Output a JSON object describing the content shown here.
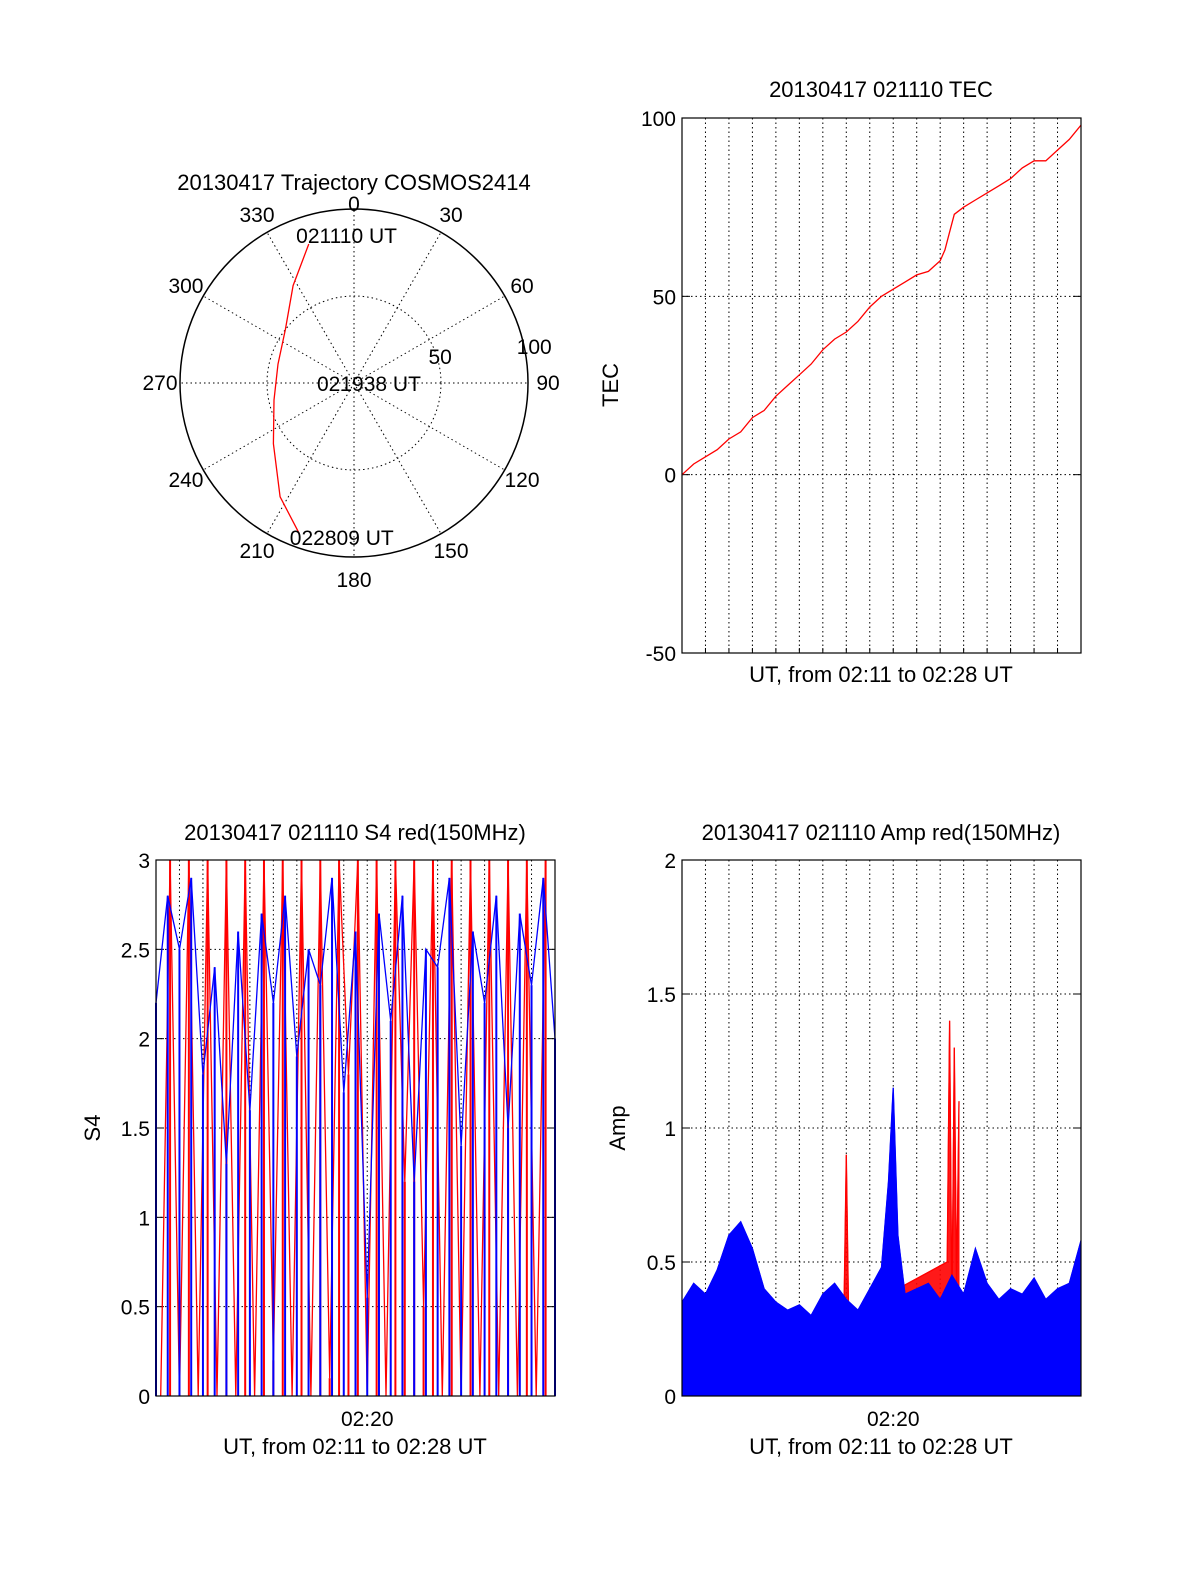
{
  "chart_data": [
    {
      "type": "polar",
      "title": "20130417 Trajectory COSMOS2414",
      "azimuth_labels": [
        "0",
        "30",
        "60",
        "90",
        "120",
        "150",
        "180",
        "210",
        "240",
        "270",
        "300",
        "330"
      ],
      "radial_labels": [
        "50",
        "100"
      ],
      "radial_range": [
        0,
        100
      ],
      "grid": true,
      "series": [
        {
          "color": "#ff0000",
          "points": [
            {
              "az": 342,
              "r": 84
            },
            {
              "az": 328,
              "r": 66
            },
            {
              "az": 308,
              "r": 50
            },
            {
              "az": 284,
              "r": 45
            },
            {
              "az": 258,
              "r": 47
            },
            {
              "az": 233,
              "r": 58
            },
            {
              "az": 213,
              "r": 78
            },
            {
              "az": 200,
              "r": 92
            }
          ]
        }
      ],
      "annotations": [
        {
          "text": "021110 UT",
          "az": 352,
          "r": 86
        },
        {
          "text": "021938 UT",
          "az": 270,
          "r": 0
        },
        {
          "text": "022809 UT",
          "az": 190,
          "r": 90
        }
      ]
    },
    {
      "type": "line",
      "title": "20130417 021110 TEC",
      "xlabel": "UT, from 02:11 to 02:28 UT",
      "ylabel": "TEC",
      "xlim": [
        0,
        17
      ],
      "ylim": [
        -50,
        100
      ],
      "yticks": [
        "-50",
        "0",
        "50",
        "100"
      ],
      "grid": true,
      "series": [
        {
          "color": "#ff0000",
          "x": [
            0,
            0.5,
            1,
            1.5,
            2,
            2.5,
            3,
            3.5,
            4,
            4.5,
            5,
            5.5,
            6,
            6.5,
            7,
            7.5,
            8,
            8.5,
            9,
            9.5,
            10,
            10.5,
            11,
            11.2,
            11.4,
            11.6,
            12,
            12.5,
            13,
            13.5,
            14,
            14.5,
            15,
            15.5,
            16,
            16.5,
            17
          ],
          "y": [
            0,
            3,
            5,
            7,
            10,
            12,
            16,
            18,
            22,
            25,
            28,
            31,
            35,
            38,
            40,
            43,
            47,
            50,
            52,
            54,
            56,
            57,
            60,
            63,
            68,
            73,
            75,
            77,
            79,
            81,
            83,
            86,
            88,
            88,
            91,
            94,
            98
          ]
        }
      ]
    },
    {
      "type": "line",
      "title": "20130417 021110 S4 red(150MHz)",
      "xlabel": "UT, from 02:11 to 02:28 UT",
      "ylabel": "S4",
      "xlim": [
        0,
        17
      ],
      "ylim": [
        0,
        3
      ],
      "yticks": [
        "0",
        "0.5",
        "1",
        "1.5",
        "2",
        "2.5",
        "3"
      ],
      "xtick_labels": [
        {
          "x": 9,
          "label": "02:20"
        }
      ],
      "grid": true,
      "series": [
        {
          "color": "#ff0000",
          "x": [
            0.2,
            0.6,
            1.0,
            1.4,
            1.8,
            2.2,
            2.6,
            3.0,
            3.4,
            3.8,
            4.2,
            4.6,
            5.0,
            5.4,
            5.8,
            6.2,
            6.6,
            7.0,
            7.4,
            7.8,
            8.2,
            8.6,
            9.0,
            9.4,
            9.8,
            10.2,
            10.6,
            11.0,
            11.4,
            11.8,
            12.2,
            12.6,
            13.0,
            13.4,
            13.8,
            14.2,
            14.6,
            15.0,
            15.4,
            15.8,
            16.2,
            16.6
          ],
          "y": [
            0,
            3,
            0,
            3,
            0,
            3,
            0,
            3,
            0,
            3,
            0,
            3,
            0.2,
            3,
            0,
            3,
            0,
            3,
            0.1,
            3,
            1.8,
            3,
            0,
            3,
            0,
            3,
            1.2,
            3,
            0.5,
            3,
            0,
            3,
            0,
            3,
            0,
            3,
            0,
            3,
            0,
            3,
            0,
            3
          ]
        },
        {
          "color": "#0000ff",
          "x": [
            0,
            0.5,
            1.0,
            1.5,
            2.0,
            2.5,
            3.0,
            3.5,
            4.0,
            4.5,
            5.0,
            5.5,
            6.0,
            6.5,
            7.0,
            7.5,
            8.0,
            8.5,
            9.0,
            9.5,
            10.0,
            10.5,
            11.0,
            11.5,
            12.0,
            12.5,
            13.0,
            13.5,
            14.0,
            14.5,
            15.0,
            15.5,
            16.0,
            16.5,
            17.0
          ],
          "y": [
            2.2,
            2.8,
            2.5,
            2.9,
            1.8,
            2.4,
            1.3,
            2.6,
            1.6,
            2.7,
            2.2,
            2.8,
            1.9,
            2.5,
            2.3,
            2.9,
            1.7,
            2.6,
            0.55,
            2.7,
            2.1,
            2.8,
            1.2,
            2.5,
            2.4,
            2.9,
            1.4,
            2.6,
            2.2,
            2.8,
            1.5,
            2.7,
            2.3,
            2.9,
            2.0
          ]
        }
      ]
    },
    {
      "type": "line",
      "title": "20130417 021110 Amp red(150MHz)",
      "xlabel": "UT, from 02:11 to 02:28 UT",
      "ylabel": "Amp",
      "xlim": [
        0,
        17
      ],
      "ylim": [
        0,
        2
      ],
      "yticks": [
        "0",
        "0.5",
        "1",
        "1.5",
        "2"
      ],
      "xtick_labels": [
        {
          "x": 9,
          "label": "02:20"
        }
      ],
      "grid": true,
      "series": [
        {
          "color": "#ff0000",
          "x": [
            6.9,
            7.0,
            7.1,
            11.3,
            11.4,
            11.5,
            11.6,
            11.7,
            11.8
          ],
          "y": [
            0.3,
            0.9,
            0.3,
            0.5,
            1.4,
            0.3,
            1.3,
            0.4,
            1.1
          ]
        },
        {
          "color": "#0000ff",
          "x": [
            0,
            0.5,
            1.0,
            1.5,
            2.0,
            2.5,
            3.0,
            3.5,
            4.0,
            4.5,
            5.0,
            5.5,
            6.0,
            6.5,
            7.0,
            7.5,
            8.0,
            8.5,
            8.8,
            9.0,
            9.2,
            9.5,
            10.0,
            10.5,
            11.0,
            11.5,
            12.0,
            12.5,
            13.0,
            13.5,
            14.0,
            14.5,
            15.0,
            15.5,
            16.0,
            16.5,
            17.0
          ],
          "y": [
            0.35,
            0.42,
            0.38,
            0.47,
            0.6,
            0.65,
            0.55,
            0.4,
            0.35,
            0.32,
            0.34,
            0.3,
            0.38,
            0.42,
            0.36,
            0.32,
            0.4,
            0.48,
            0.8,
            1.15,
            0.6,
            0.38,
            0.4,
            0.42,
            0.36,
            0.45,
            0.38,
            0.55,
            0.42,
            0.36,
            0.4,
            0.38,
            0.44,
            0.36,
            0.4,
            0.42,
            0.58
          ]
        }
      ]
    }
  ]
}
